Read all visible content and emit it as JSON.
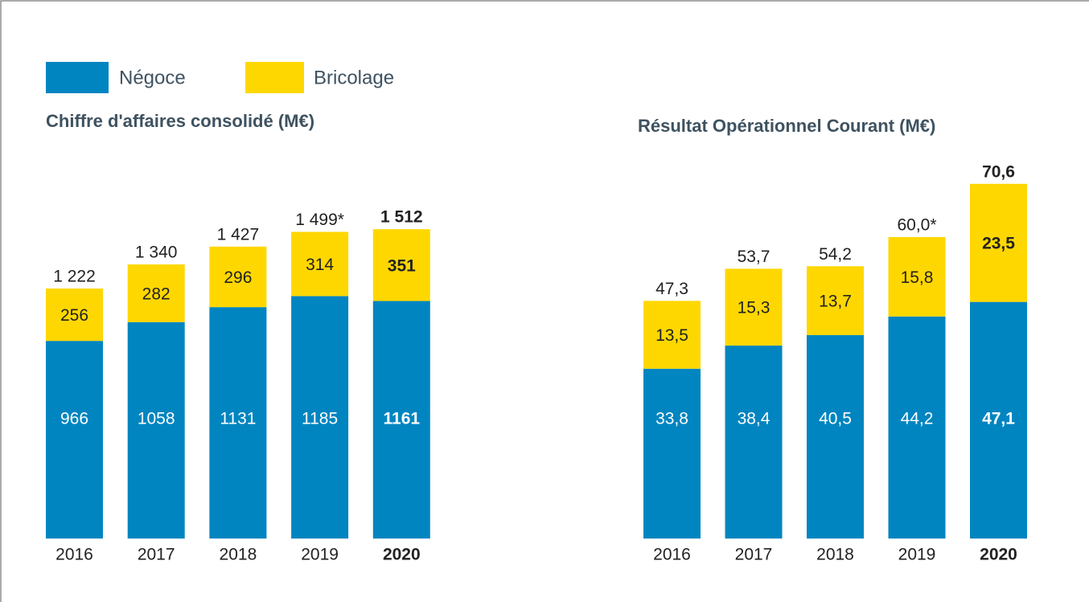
{
  "chart_data": [
    {
      "type": "stacked_bar",
      "title": "Chiffre d'affaires consolidé (M€)",
      "categories": [
        "2016",
        "2017",
        "2018",
        "2019",
        "2020"
      ],
      "series": [
        {
          "name": "Négoce",
          "color": "#0085c0",
          "values": [
            966,
            1058,
            1131,
            1185,
            1161
          ]
        },
        {
          "name": "Bricolage",
          "color": "#ffd700",
          "values": [
            256,
            282,
            296,
            314,
            351
          ]
        }
      ],
      "totals": [
        1222,
        1340,
        1427,
        1499,
        1512
      ],
      "total_labels": [
        "1 222",
        "1 340",
        "1 427",
        "1 499*",
        "1 512"
      ],
      "ylim": [
        0,
        2000
      ]
    },
    {
      "type": "stacked_bar",
      "title": "Résultat Opérationnel Courant (M€)",
      "categories": [
        "2016",
        "2017",
        "2018",
        "2019",
        "2020"
      ],
      "series": [
        {
          "color": "#0085c0",
          "values": [
            33.8,
            38.4,
            40.5,
            44.2,
            47.1
          ],
          "value_labels": [
            "33,8",
            "38,4",
            "40,5",
            "44,2",
            "47,1"
          ]
        },
        {
          "color": "#ffd700",
          "values": [
            13.5,
            15.3,
            13.7,
            15.8,
            23.5
          ],
          "value_labels": [
            "13,5",
            "15,3",
            "13,7",
            "15,8",
            "23,5"
          ]
        }
      ],
      "totals": [
        47.3,
        53.7,
        54.2,
        60.0,
        70.6
      ],
      "total_labels": [
        "47,3",
        "53,7",
        "54,2",
        "60,0*",
        "70,6"
      ],
      "ylim": [
        0,
        80
      ]
    }
  ]
}
